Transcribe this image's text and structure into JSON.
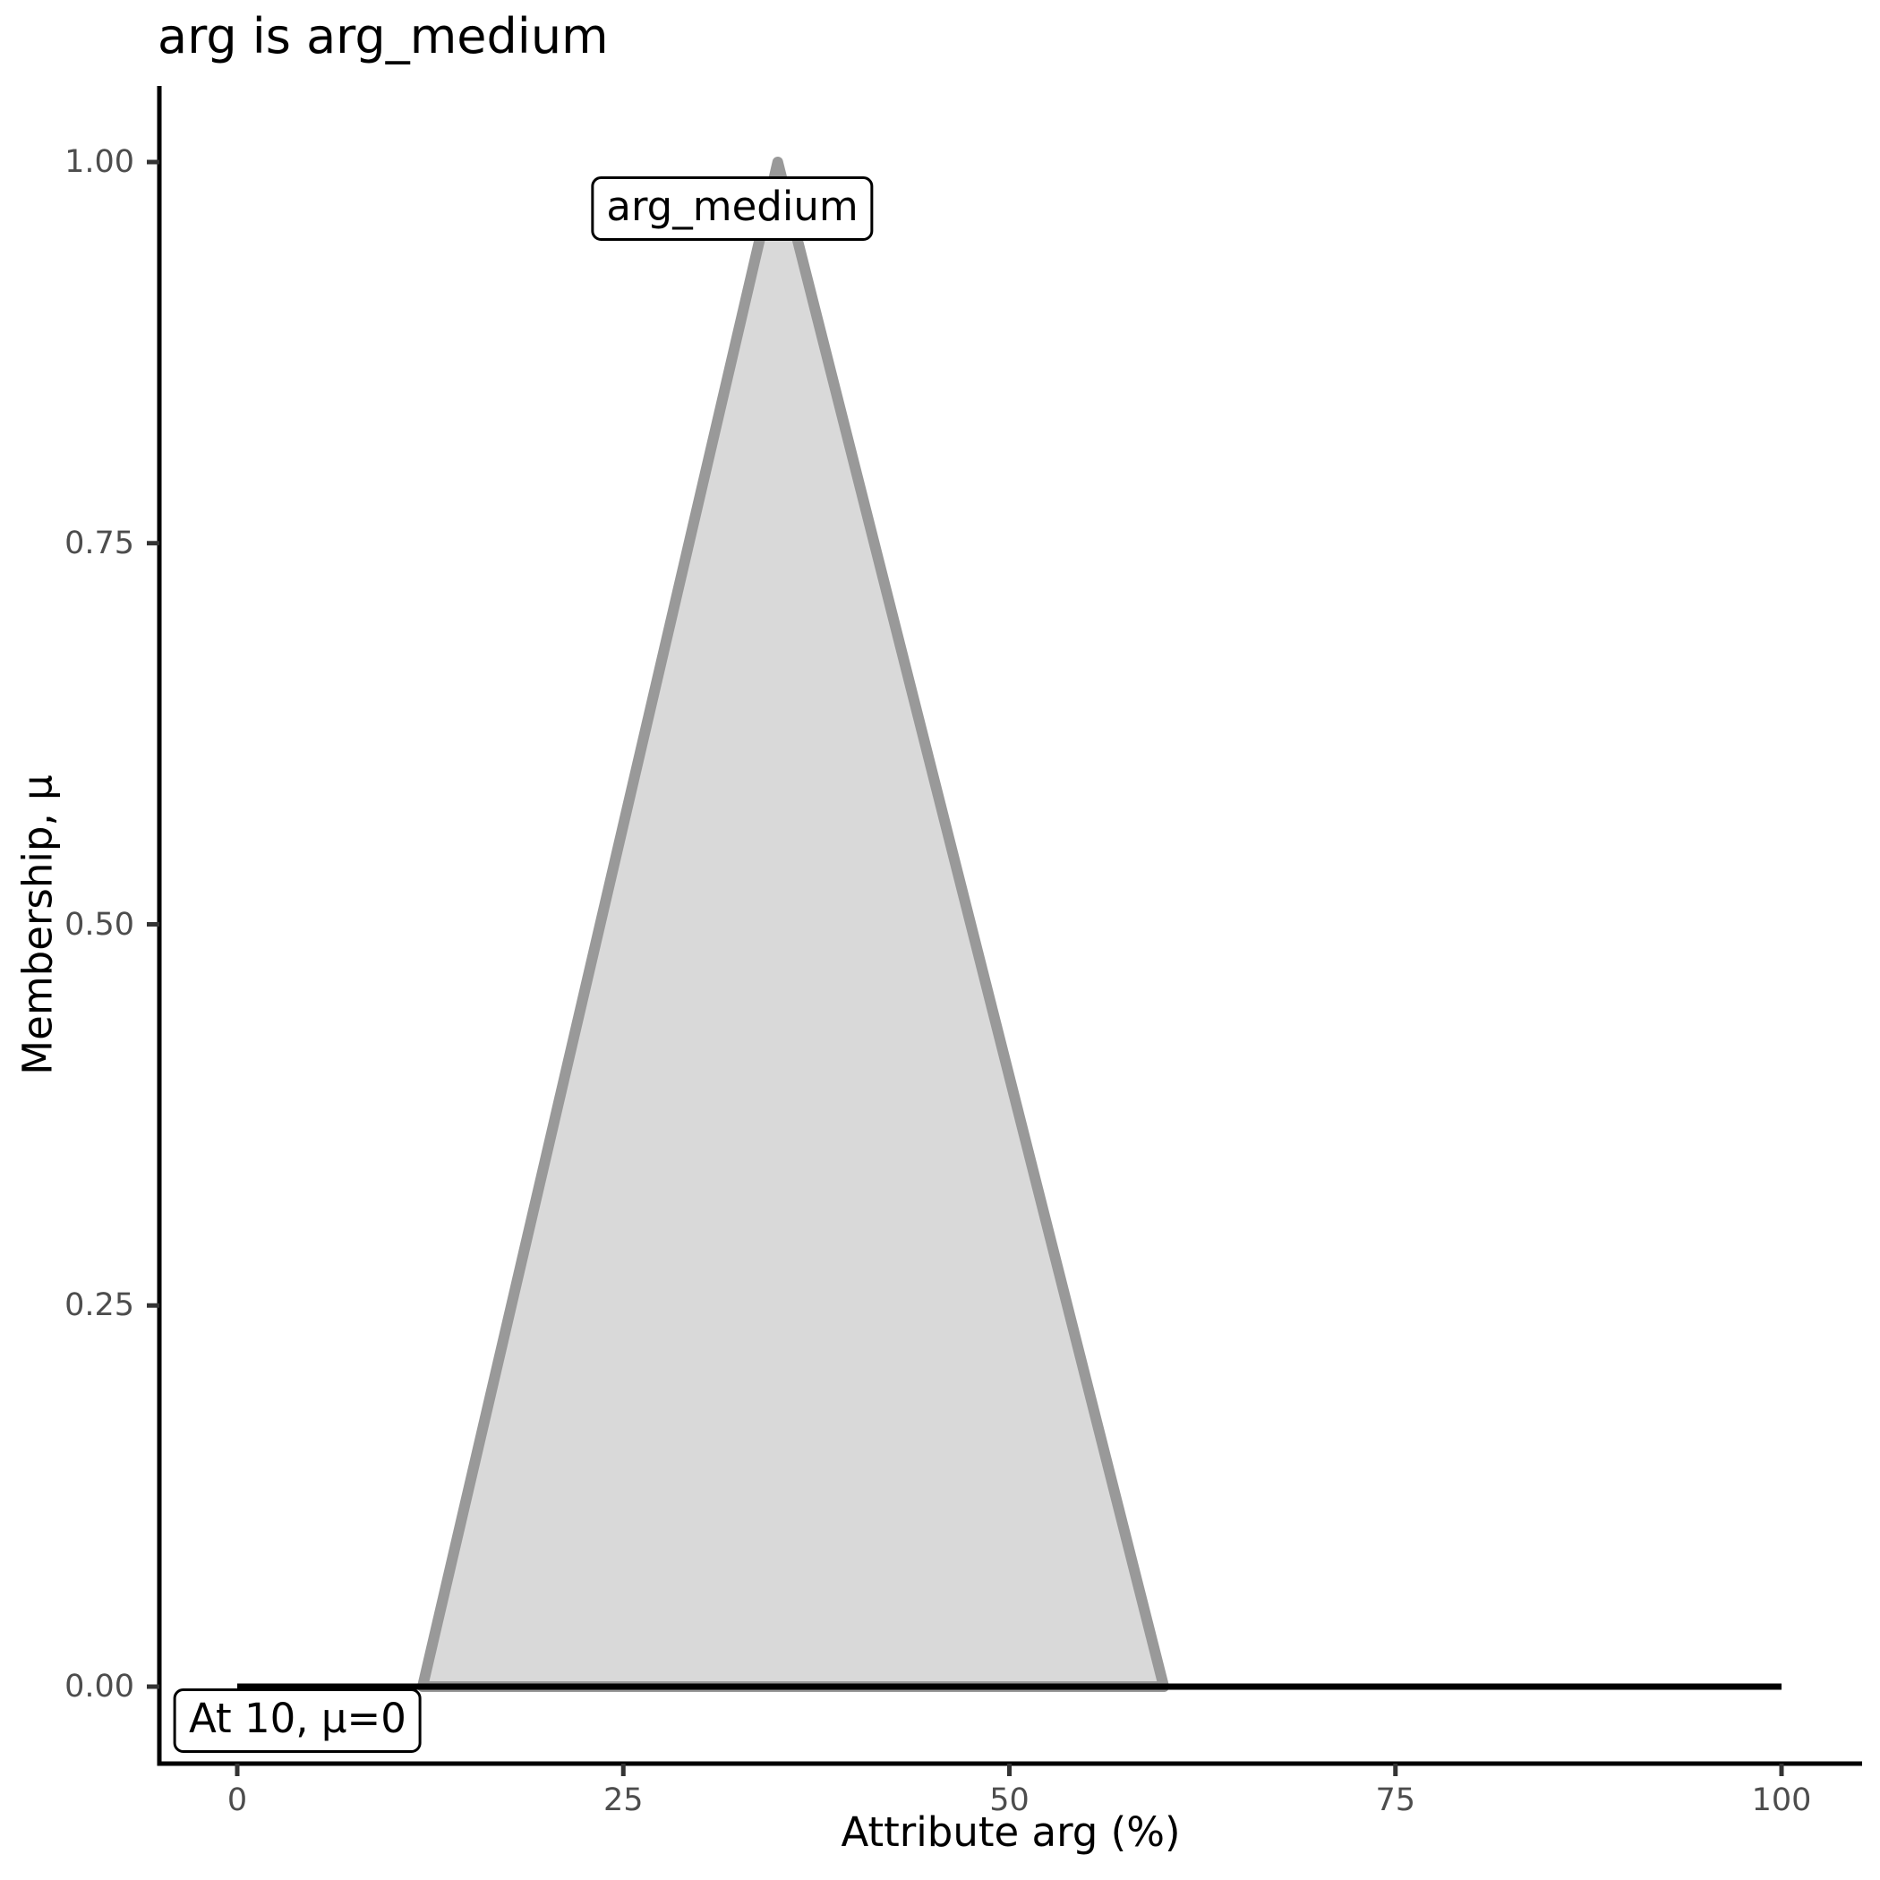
{
  "figure": {
    "title": "arg is arg_medium"
  },
  "chart_data": {
    "type": "area",
    "title": "arg is arg_medium",
    "xlabel": "Attribute arg (%)",
    "ylabel": "Membership, μ",
    "xlim": [
      0,
      100
    ],
    "ylim": [
      0,
      1
    ],
    "grid": "off",
    "legend": "none",
    "x_ticks": {
      "values": [
        0,
        25,
        50,
        75,
        100
      ],
      "labels": [
        "0",
        "25",
        "50",
        "75",
        "100"
      ]
    },
    "y_ticks": {
      "values": [
        0,
        0.25,
        0.5,
        0.75,
        1
      ],
      "labels": [
        "0.00",
        "0.25",
        "0.50",
        "0.75",
        "1.00"
      ]
    },
    "series": [
      {
        "name": "arg_medium",
        "kind": "membership_polygon",
        "points": [
          [
            12,
            0
          ],
          [
            35,
            1
          ],
          [
            60,
            0
          ]
        ],
        "fill": "#d9d9d9",
        "stroke": "#999999",
        "stroke_width": 12
      },
      {
        "name": "activation_level",
        "kind": "line",
        "points": [
          [
            0,
            0
          ],
          [
            100,
            0
          ]
        ],
        "stroke": "#000000",
        "stroke_width": 7
      }
    ],
    "annotations": [
      {
        "text": "arg_medium",
        "x": 32.06,
        "mu": 0.9695
      },
      {
        "text": "At 10, μ=0",
        "x": 3.91,
        "mu": -0.0226
      }
    ],
    "input_value": 10,
    "membership_at_input": 0
  },
  "style": {
    "axis_color": "#000000",
    "tick_color": "#333333",
    "tick_label_color": "#4d4d4d",
    "text_color": "#000000",
    "background": "#ffffff"
  }
}
